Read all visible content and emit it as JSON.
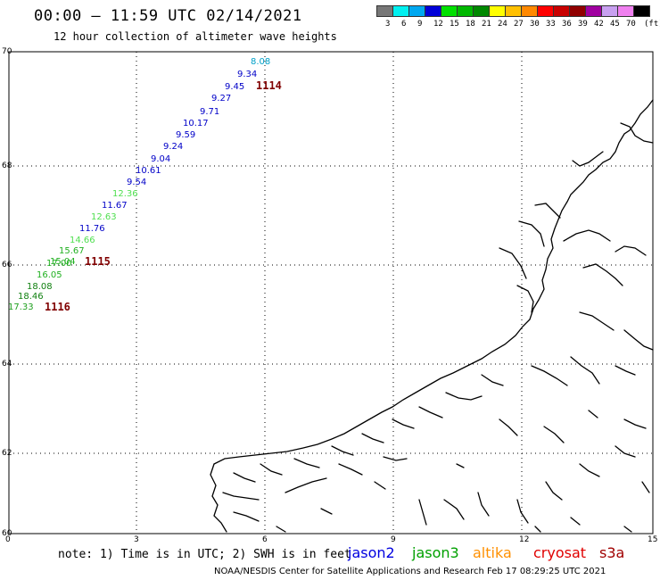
{
  "header": {
    "title": "00:00 – 11:59 UTC 02/14/2021",
    "subtitle": "12 hour collection of altimeter wave heights"
  },
  "colorbar": {
    "unit": "(ft)",
    "swatches": [
      {
        "color": "#777777",
        "label": "3"
      },
      {
        "color": "#00f0f0",
        "label": "6"
      },
      {
        "color": "#00a8f0",
        "label": "9"
      },
      {
        "color": "#0000d8",
        "label": "12"
      },
      {
        "color": "#00e000",
        "label": "15"
      },
      {
        "color": "#00b800",
        "label": "18"
      },
      {
        "color": "#008800",
        "label": "21"
      },
      {
        "color": "#ffff00",
        "label": "24"
      },
      {
        "color": "#ffc000",
        "label": "27"
      },
      {
        "color": "#ff8800",
        "label": "30"
      },
      {
        "color": "#ff0000",
        "label": "33"
      },
      {
        "color": "#c80000",
        "label": "36"
      },
      {
        "color": "#900000",
        "label": "39"
      },
      {
        "color": "#a000a0",
        "label": "42"
      },
      {
        "color": "#c8a0f0",
        "label": "45"
      },
      {
        "color": "#f080f0",
        "label": "70"
      },
      {
        "color": "#000000",
        "label": ""
      }
    ]
  },
  "axes": {
    "y_ticks": [
      "70",
      "68",
      "66",
      "64",
      "62",
      "60"
    ],
    "x_ticks": [
      "0",
      "3",
      "6",
      "9",
      "12",
      "15"
    ],
    "grid": true
  },
  "observations": [
    {
      "value": "8.08",
      "color": "#00a0c8"
    },
    {
      "value": "9.34",
      "color": "#0000c8"
    },
    {
      "value": "9.45",
      "color": "#0000c8"
    },
    {
      "value": "9.27",
      "color": "#0000c8"
    },
    {
      "value": "9.71",
      "color": "#0000c8"
    },
    {
      "value": "10.17",
      "color": "#0000c8"
    },
    {
      "value": "9.59",
      "color": "#0000c8"
    },
    {
      "value": "9.24",
      "color": "#0000c8"
    },
    {
      "value": "9.04",
      "color": "#0000c8"
    },
    {
      "value": "10.61",
      "color": "#0000c8"
    },
    {
      "value": "9.54",
      "color": "#0000c8"
    },
    {
      "value": "12.36",
      "color": "#50e050"
    },
    {
      "value": "11.67",
      "color": "#0000c8"
    },
    {
      "value": "12.63",
      "color": "#50e050"
    },
    {
      "value": "11.76",
      "color": "#0000c8"
    },
    {
      "value": "14.66",
      "color": "#50e050"
    },
    {
      "value": "15.67",
      "color": "#20b020"
    },
    {
      "value": "15.04",
      "color": "#20b020"
    },
    {
      "value": "17.00",
      "color": "#20b020"
    },
    {
      "value": "16.05",
      "color": "#20b020"
    },
    {
      "value": "18.08",
      "color": "#108010"
    },
    {
      "value": "18.46",
      "color": "#108010"
    },
    {
      "value": "17.33",
      "color": "#20a020"
    }
  ],
  "time_labels": [
    "1114",
    "1115",
    "1116"
  ],
  "footer": {
    "note": "note: 1) Time is in UTC; 2) SWH is in feet",
    "satellites": [
      {
        "name": "jason2",
        "color": "#0000e0"
      },
      {
        "name": "jason3",
        "color": "#00a000"
      },
      {
        "name": "altika",
        "color": "#ff9000"
      },
      {
        "name": "cryosat",
        "color": "#e00000"
      },
      {
        "name": "s3a",
        "color": "#a00000"
      }
    ],
    "credit": "NOAA/NESDIS Center for Satellite Applications and Research   Feb 17 08:29:25 UTC 2021"
  }
}
